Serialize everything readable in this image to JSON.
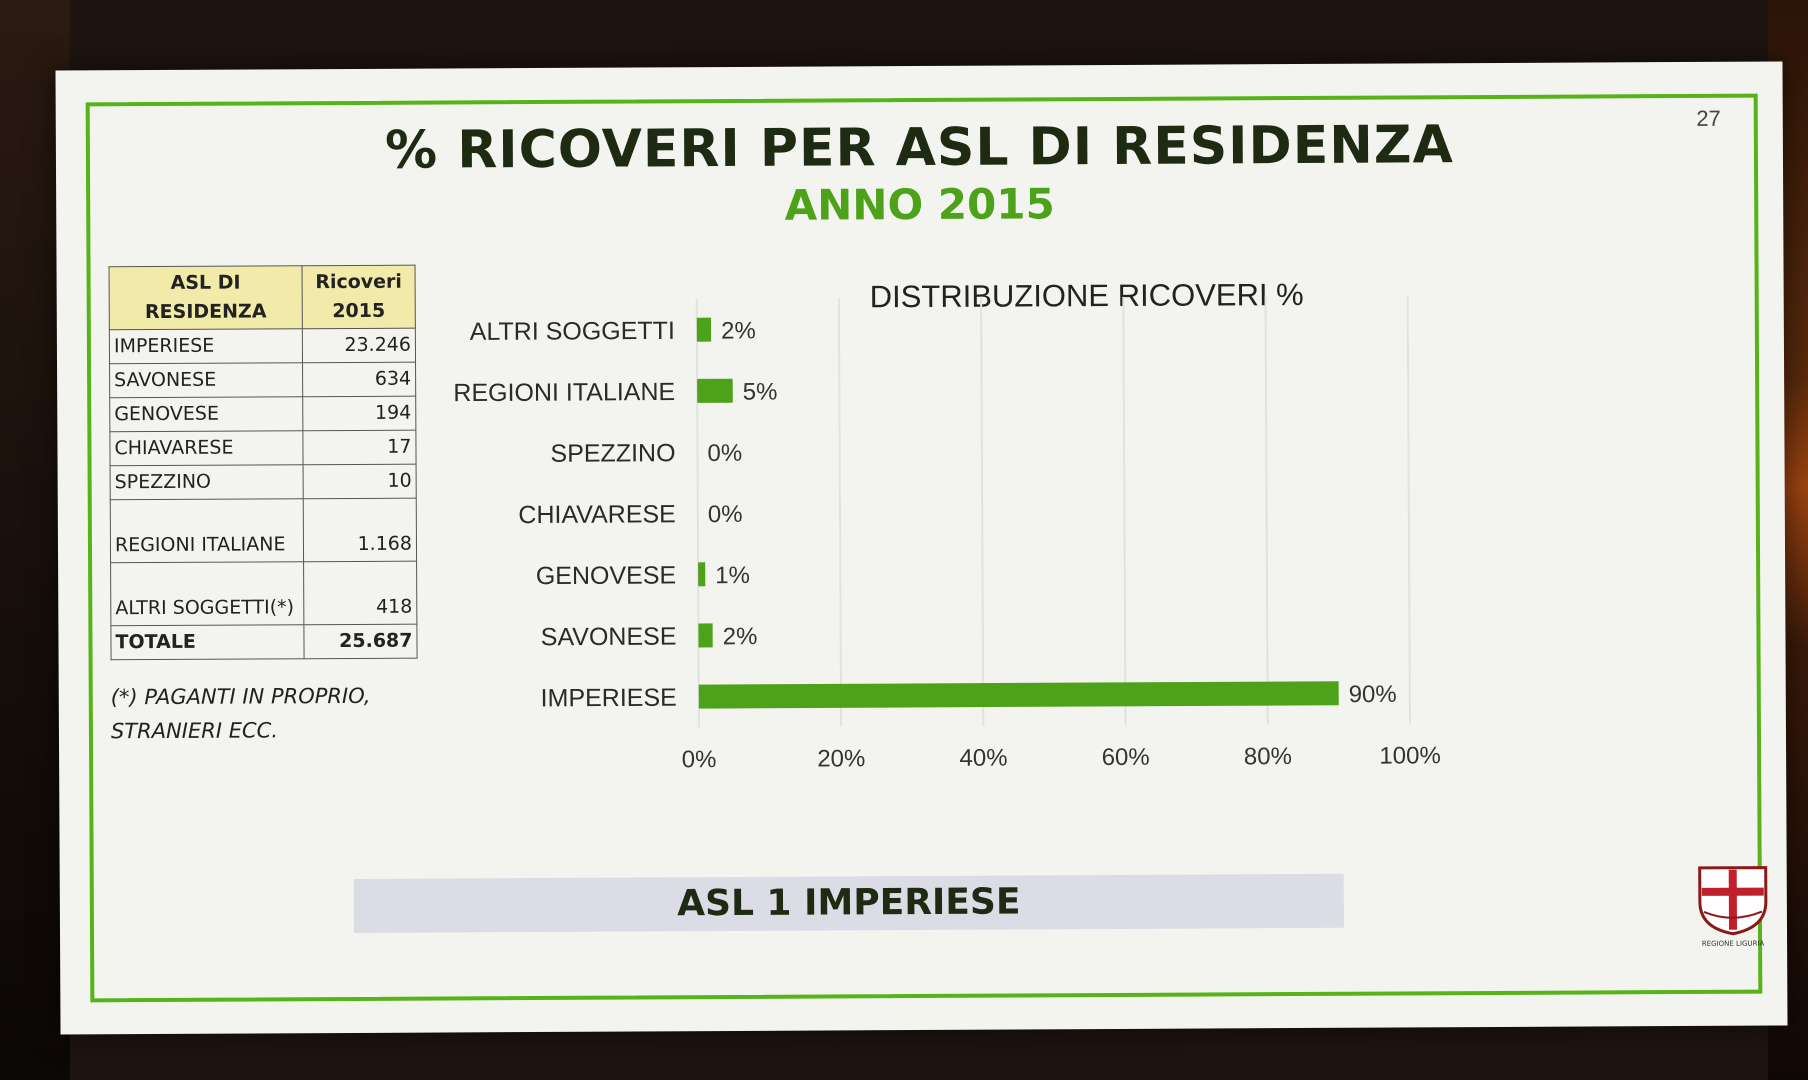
{
  "slide": {
    "page_number": "27",
    "title": "% RICOVERI PER ASL DI RESIDENZA",
    "subtitle": "ANNO 2015",
    "footer": "ASL 1 IMPERIESE",
    "logo_text": "REGIONE LIGURIA"
  },
  "table": {
    "headers": [
      "ASL DI RESIDENZA",
      "Ricoveri 2015"
    ],
    "rows": [
      {
        "label": "IMPERIESE",
        "value": "23.246"
      },
      {
        "label": "SAVONESE",
        "value": "634"
      },
      {
        "label": "GENOVESE",
        "value": "194"
      },
      {
        "label": "CHIAVARESE",
        "value": "17"
      },
      {
        "label": "SPEZZINO",
        "value": "10"
      },
      {
        "label": "REGIONI ITALIANE",
        "value": "1.168"
      },
      {
        "label": "ALTRI SOGGETTI(*)",
        "value": "418"
      }
    ],
    "total": {
      "label": "TOTALE",
      "value": "25.687"
    },
    "note": "(*) PAGANTI IN PROPRIO, STRANIERI ECC."
  },
  "chart_data": {
    "type": "bar",
    "orientation": "horizontal",
    "title": "DISTRIBUZIONE RICOVERI %",
    "categories": [
      "ALTRI SOGGETTI",
      "REGIONI ITALIANE",
      "SPEZZINO",
      "CHIAVARESE",
      "GENOVESE",
      "SAVONESE",
      "IMPERIESE"
    ],
    "values": [
      2,
      5,
      0,
      0,
      1,
      2,
      90
    ],
    "data_labels": [
      "2%",
      "5%",
      "0%",
      "0%",
      "1%",
      "2%",
      "90%"
    ],
    "xlim": [
      0,
      100
    ],
    "x_ticks": [
      0,
      20,
      40,
      60,
      80,
      100
    ],
    "x_tick_labels": [
      "0%",
      "20%",
      "40%",
      "60%",
      "80%",
      "100%"
    ],
    "grid": true,
    "legend": "none",
    "bar_color": "#4ea21a"
  }
}
